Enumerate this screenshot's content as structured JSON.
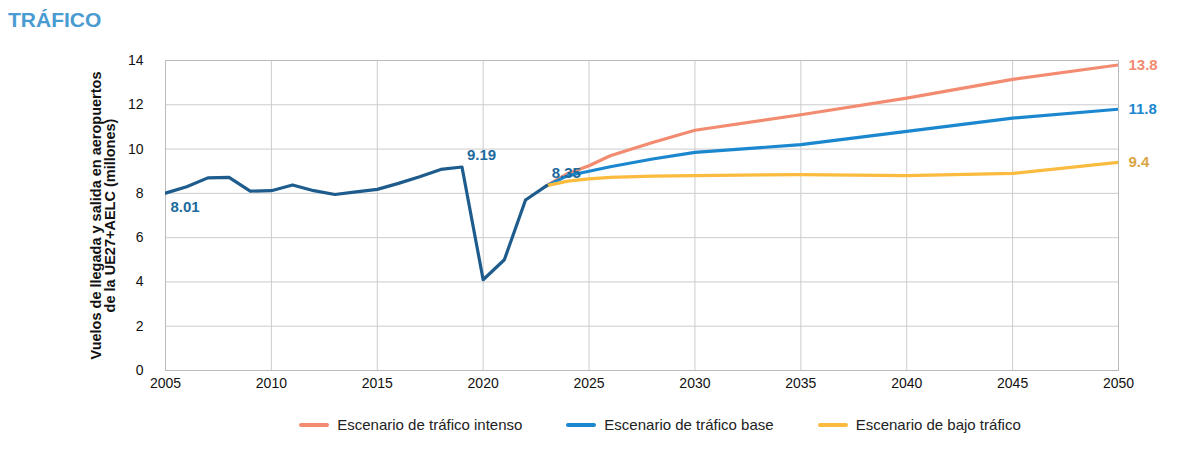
{
  "chart_data": {
    "type": "line",
    "title": "TRÁFICO",
    "ylabel": "Vuelos de llegada y salida en aeropuertos\nde la UE27+AELC (millones)",
    "x": [
      2005,
      2006,
      2007,
      2008,
      2009,
      2010,
      2011,
      2012,
      2013,
      2014,
      2015,
      2016,
      2017,
      2018,
      2019,
      2020,
      2021,
      2022,
      2023,
      2024,
      2025,
      2026,
      2028,
      2030,
      2035,
      2040,
      2045,
      2050
    ],
    "series": [
      {
        "color": "#1d5c8c",
        "values": [
          8.01,
          8.3,
          8.7,
          8.72,
          8.1,
          8.12,
          8.38,
          8.12,
          7.95,
          8.07,
          8.18,
          8.45,
          8.75,
          9.08,
          9.19,
          4.1,
          5.0,
          7.7,
          8.35,
          null,
          null,
          null,
          null,
          null,
          null,
          null,
          null,
          null
        ]
      },
      {
        "name": "Escenario de tráfico intenso",
        "color": "#f28b70",
        "values": [
          null,
          null,
          null,
          null,
          null,
          null,
          null,
          null,
          null,
          null,
          null,
          null,
          null,
          null,
          null,
          null,
          null,
          null,
          8.35,
          8.9,
          9.25,
          9.7,
          10.3,
          10.85,
          11.55,
          12.3,
          13.15,
          13.8
        ]
      },
      {
        "name": "Escenario de tráfico base",
        "color": "#1a87cf",
        "values": [
          null,
          null,
          null,
          null,
          null,
          null,
          null,
          null,
          null,
          null,
          null,
          null,
          null,
          null,
          null,
          null,
          null,
          null,
          8.35,
          8.8,
          9.0,
          9.2,
          9.55,
          9.85,
          10.2,
          10.8,
          11.4,
          11.8
        ]
      },
      {
        "name": "Escenario de bajo tráfico",
        "color": "#fbbb3e",
        "values": [
          null,
          null,
          null,
          null,
          null,
          null,
          null,
          null,
          null,
          null,
          null,
          null,
          null,
          null,
          null,
          null,
          null,
          null,
          8.35,
          8.55,
          8.65,
          8.72,
          8.78,
          8.8,
          8.85,
          8.8,
          8.9,
          9.4
        ]
      }
    ],
    "xlim": [
      2005,
      2050
    ],
    "xticks": [
      2005,
      2010,
      2015,
      2020,
      2025,
      2030,
      2035,
      2040,
      2045,
      2050
    ],
    "ylim": [
      0,
      14
    ],
    "yticks": [
      0,
      2,
      4,
      6,
      8,
      10,
      12,
      14
    ],
    "grid": true,
    "legend": "bottom",
    "annotations": [
      {
        "text": "8.01",
        "x": 2005,
        "y": 8.01,
        "color": "#1d6a9e"
      },
      {
        "text": "9.19",
        "x": 2019,
        "y": 9.19,
        "color": "#1d6a9e"
      },
      {
        "text": "8.35",
        "x": 2023,
        "y": 8.35,
        "color": "#1d6a9e"
      },
      {
        "text": "13.8",
        "x": 2050,
        "y": 13.8,
        "color": "#f28b70"
      },
      {
        "text": "11.8",
        "x": 2050,
        "y": 11.8,
        "color": "#1a87cf"
      },
      {
        "text": "9.4",
        "x": 2050,
        "y": 9.4,
        "color": "#d9a544"
      }
    ]
  }
}
